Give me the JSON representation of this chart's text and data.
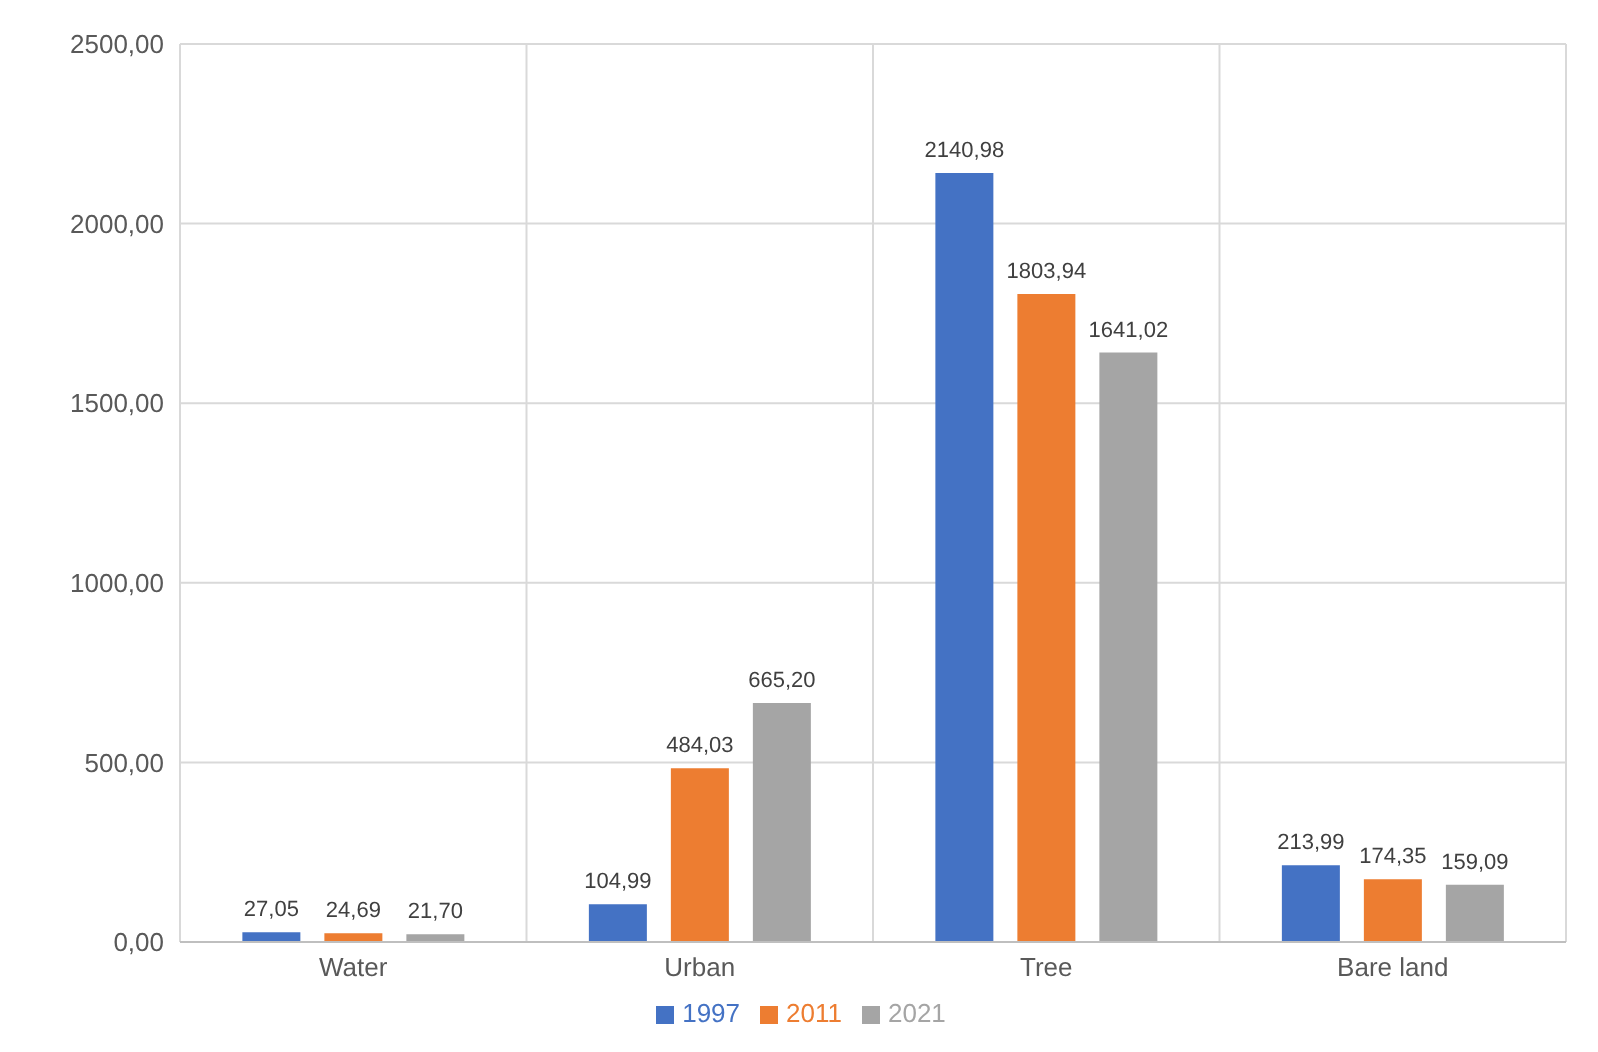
{
  "chart_data": {
    "type": "bar",
    "categories": [
      "Water",
      "Urban",
      "Tree",
      "Bare land"
    ],
    "series": [
      {
        "name": "1997",
        "color": "#4472c4",
        "values": [
          27.05,
          104.99,
          2140.98,
          213.99
        ],
        "value_labels": [
          "27,05",
          "104,99",
          "2140,98",
          "213,99"
        ]
      },
      {
        "name": "2011",
        "color": "#ed7d31",
        "values": [
          24.69,
          484.03,
          1803.94,
          174.35
        ],
        "value_labels": [
          "24,69",
          "484,03",
          "1803,94",
          "174,35"
        ]
      },
      {
        "name": "2021",
        "color": "#a5a5a5",
        "values": [
          21.7,
          665.2,
          1641.02,
          159.09
        ],
        "value_labels": [
          "21,70",
          "665,20",
          "1641,02",
          "159,09"
        ]
      }
    ],
    "ylim": [
      0,
      2500
    ],
    "yticks": [
      {
        "value": 0,
        "label": "0,00"
      },
      {
        "value": 500,
        "label": "500,00"
      },
      {
        "value": 1000,
        "label": "1000,00"
      },
      {
        "value": 1500,
        "label": "1500,00"
      },
      {
        "value": 2000,
        "label": "2000,00"
      },
      {
        "value": 2500,
        "label": "2500,00"
      }
    ],
    "grid": true,
    "legend": "bottom"
  }
}
